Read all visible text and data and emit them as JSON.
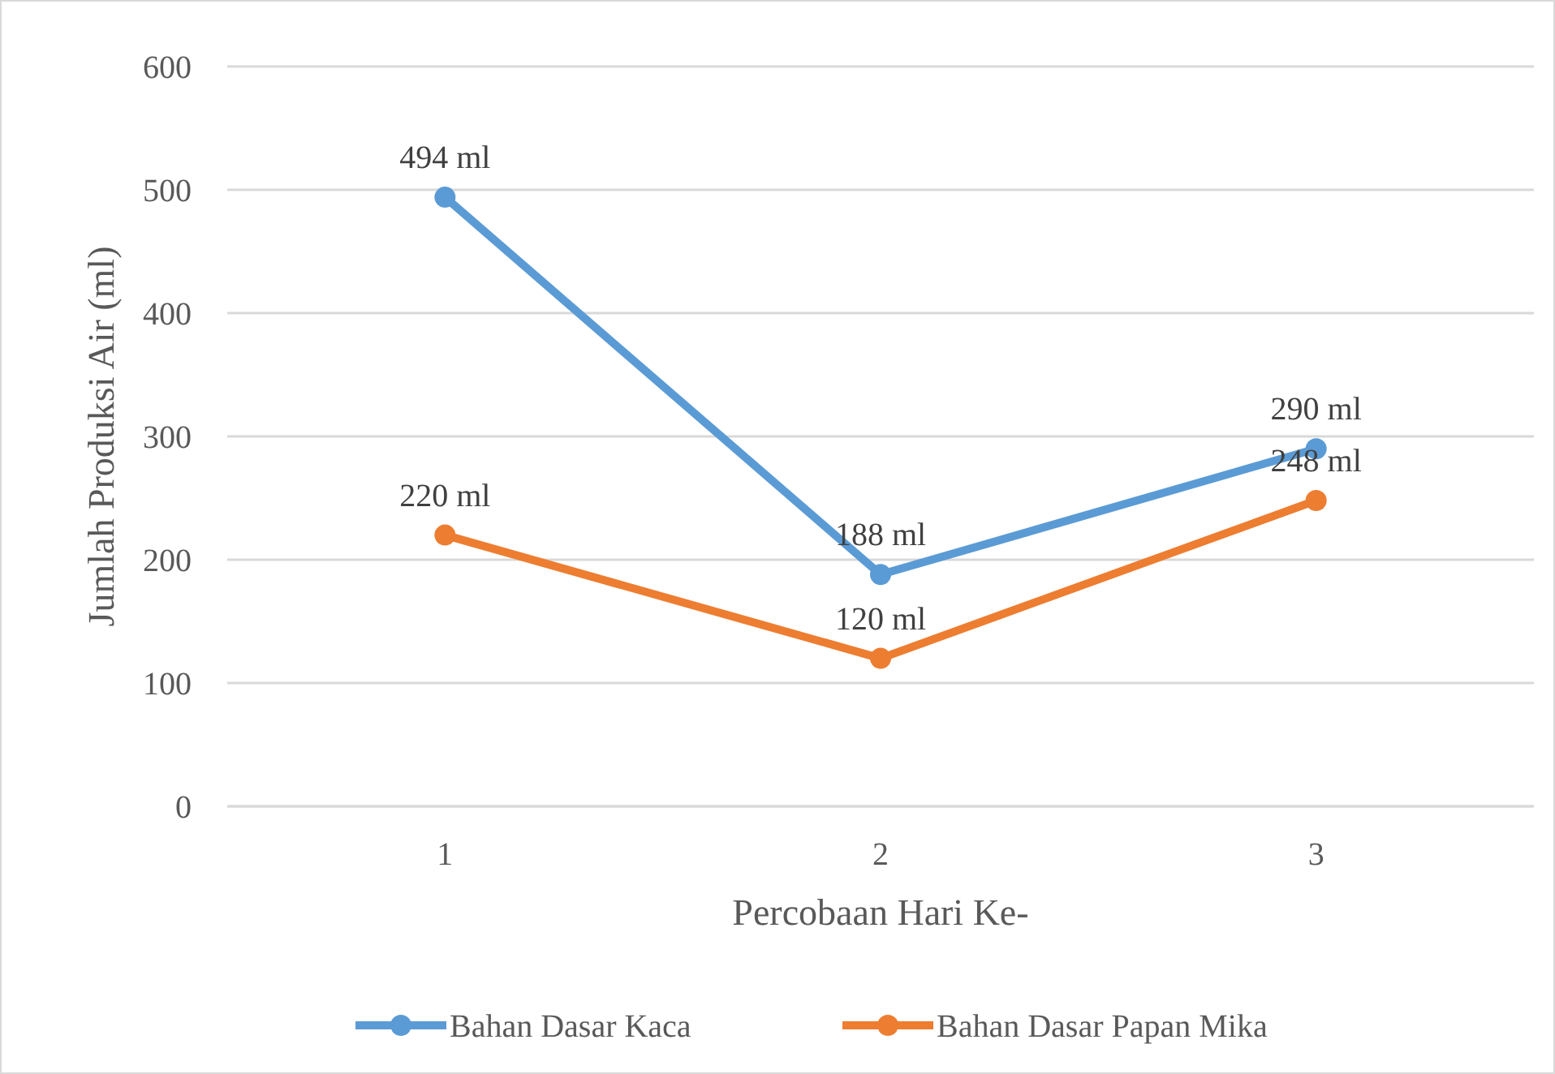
{
  "chart_data": {
    "type": "line",
    "xlabel": "Percobaan Hari Ke-",
    "ylabel": "Jumlah Produksi Air (ml)",
    "categories": [
      "1",
      "2",
      "3"
    ],
    "ylim": [
      0,
      600
    ],
    "yticks": [
      0,
      100,
      200,
      300,
      400,
      500,
      600
    ],
    "grid": "y",
    "legend": "bottom",
    "marker": "circle",
    "line_style": "solid",
    "series": [
      {
        "name": "Bahan Dasar Kaca",
        "color": "#5b9bd5",
        "values": [
          494,
          188,
          290
        ],
        "value_labels": [
          "494 ml",
          "188 ml",
          "290 ml"
        ]
      },
      {
        "name": "Bahan Dasar Papan Mika",
        "color": "#ed7d31",
        "values": [
          220,
          120,
          248
        ],
        "value_labels": [
          "220 ml",
          "120 ml",
          "248 ml"
        ]
      }
    ]
  }
}
